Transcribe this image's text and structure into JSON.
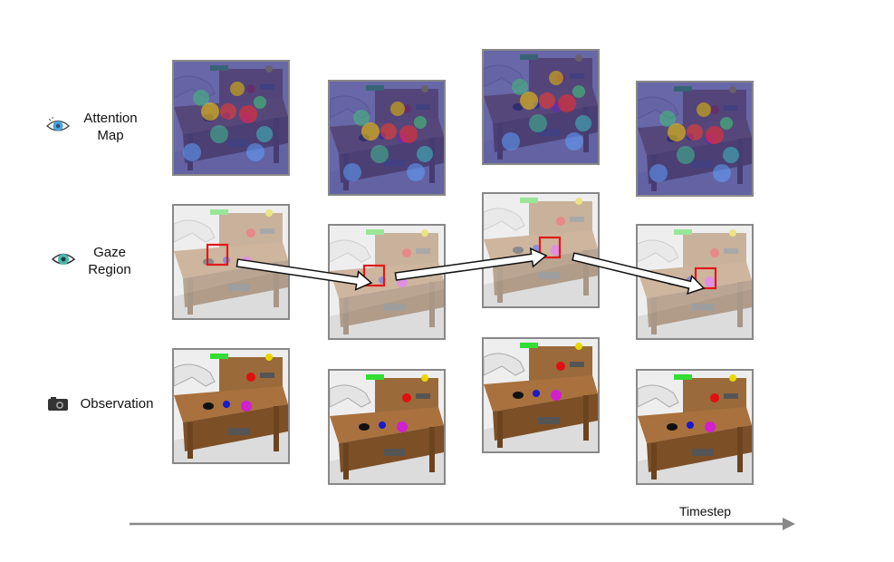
{
  "rows": [
    {
      "label_line1": "Attention",
      "label_line2": "Map",
      "icon": "sparkle-eye-icon",
      "kind": "attention"
    },
    {
      "label_line1": "Gaze",
      "label_line2": "Region",
      "icon": "eye-icon",
      "kind": "gaze"
    },
    {
      "label_line1": "Observation",
      "label_line2": "",
      "icon": "camera-icon",
      "kind": "observation"
    }
  ],
  "timestep_label": "Timestep",
  "colors": {
    "gaze_box": "#e0191b",
    "axis": "#888888",
    "desk": "#8b5a2b",
    "attention_bg": "#3b3a8f"
  }
}
